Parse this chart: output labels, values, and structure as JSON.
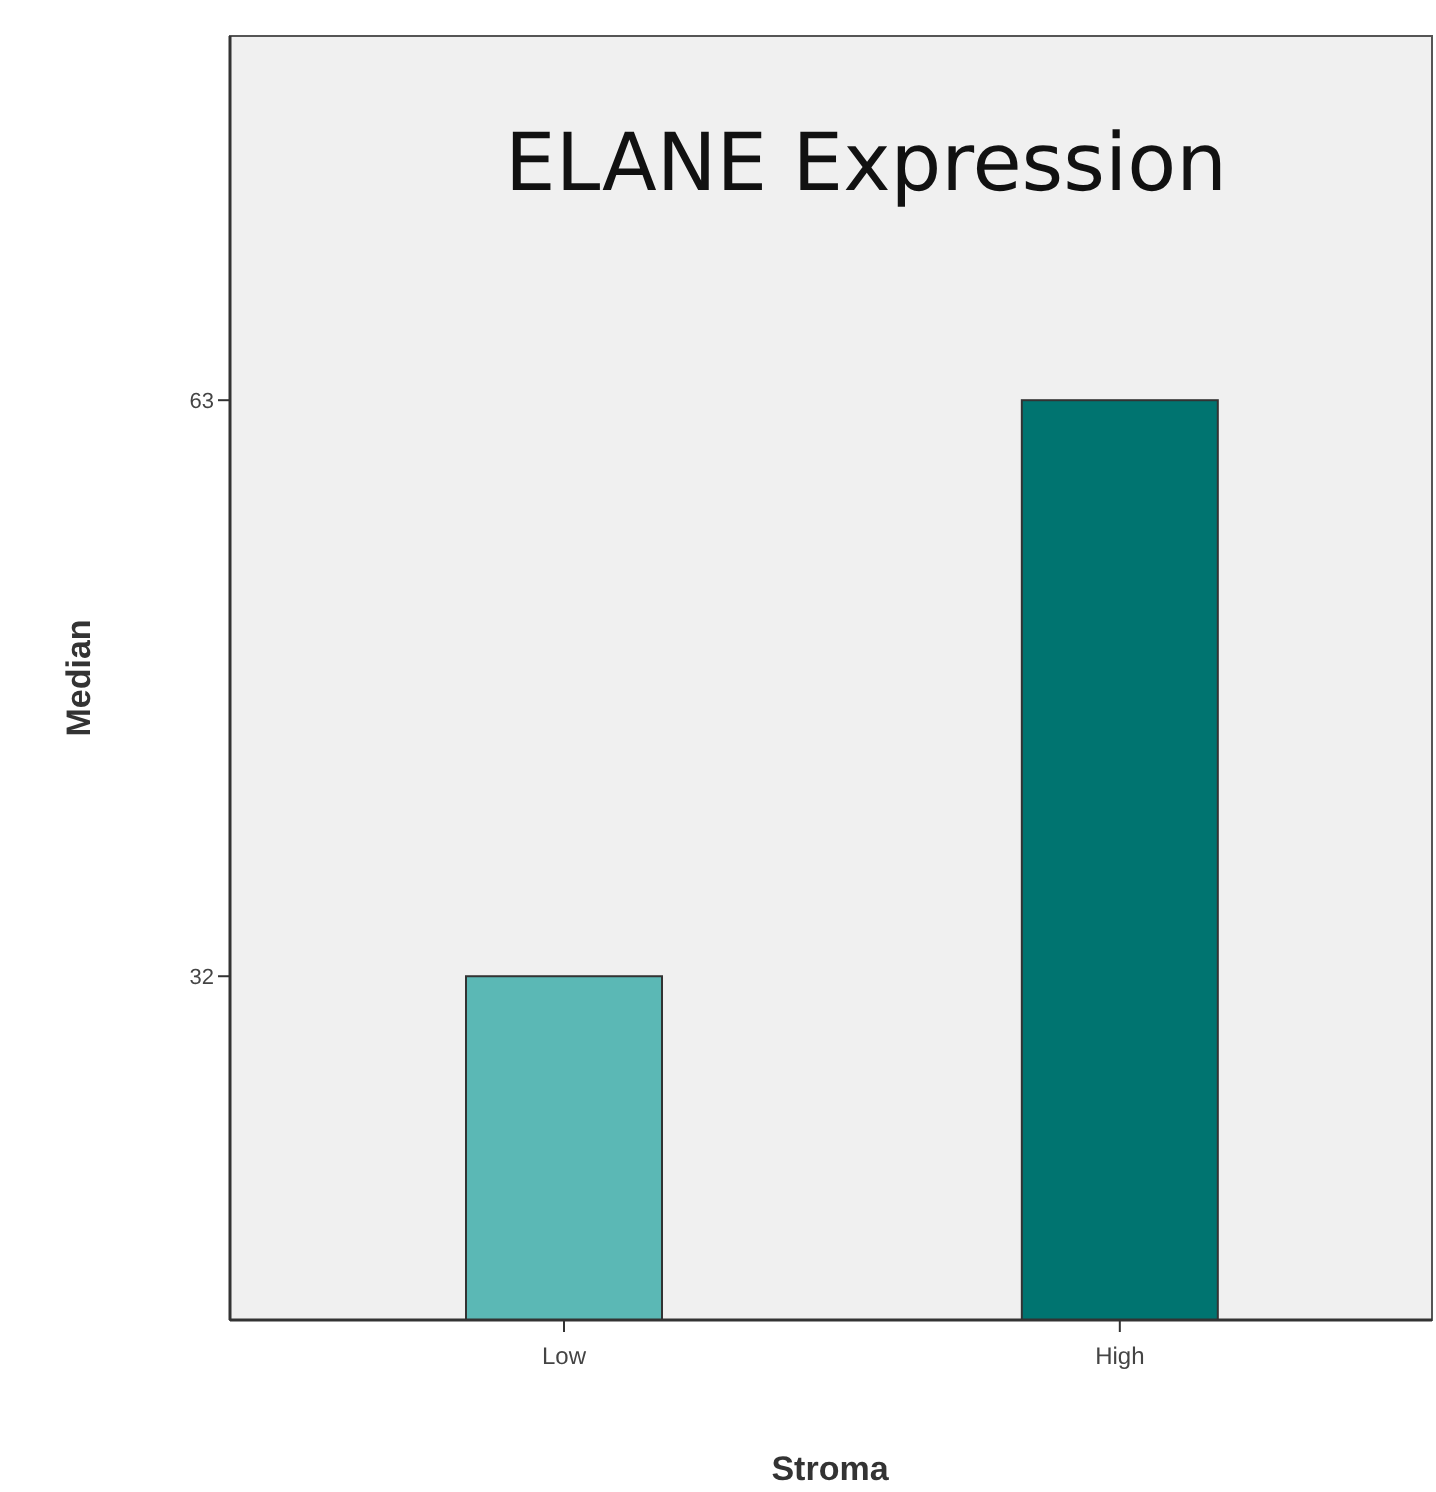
{
  "chart_data": {
    "type": "bar",
    "title": "ELANE Expression",
    "xlabel": "Stroma",
    "ylabel": "Median",
    "categories": [
      "Low",
      "High"
    ],
    "values": [
      32,
      63
    ],
    "colors": [
      "#5bb8b5",
      "#007470"
    ],
    "ylim": [
      13.5,
      82.6
    ],
    "yticks": [
      32,
      63
    ],
    "grid": false
  }
}
